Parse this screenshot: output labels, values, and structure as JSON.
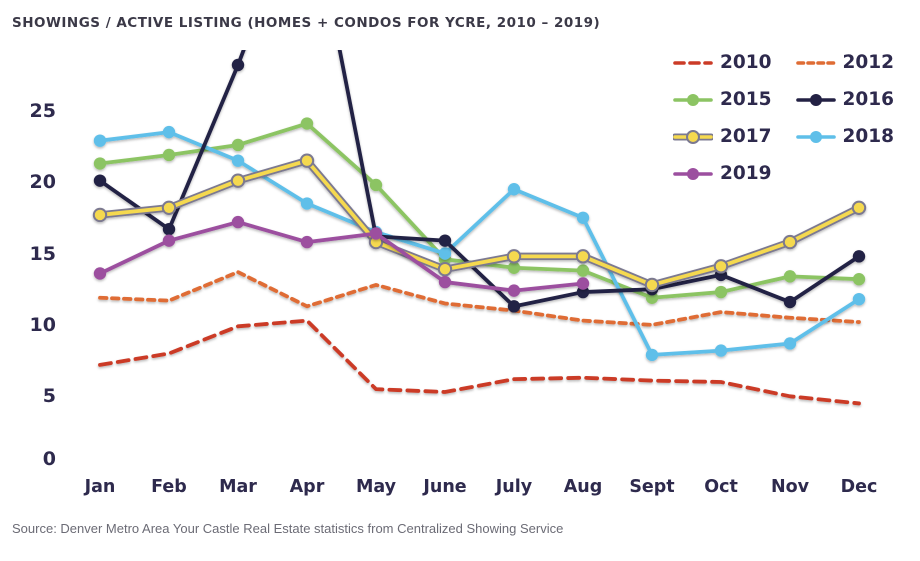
{
  "source": "Source: Denver Metro Area Your Castle Real Estate statistics from Centralized Showing Service",
  "chart_data": {
    "type": "line",
    "title": "SHOWINGS / ACTIVE LISTING (HOMES + CONDOS FOR YCRE, 2010 – 2019)",
    "categories": [
      "Jan",
      "Feb",
      "Mar",
      "Apr",
      "May",
      "June",
      "July",
      "Aug",
      "Sept",
      "Oct",
      "Nov",
      "Dec"
    ],
    "y_ticks": [
      0,
      5,
      10,
      15,
      20,
      25
    ],
    "ylim": [
      0,
      29
    ],
    "grid": false,
    "axis_lines": false,
    "legend_position": "top-right",
    "text_color": "#2e2a4d",
    "series": [
      {
        "name": "2010",
        "color": "#cb3b27",
        "style": "dashed",
        "dash": "long",
        "marker": false,
        "values": [
          7.2,
          8.0,
          9.9,
          10.3,
          5.5,
          5.3,
          6.2,
          6.3,
          6.1,
          6.0,
          5.0,
          4.5
        ]
      },
      {
        "name": "2012",
        "color": "#df6c34",
        "style": "dashed",
        "dash": "short",
        "marker": false,
        "values": [
          11.9,
          11.7,
          13.7,
          11.3,
          12.8,
          11.5,
          11.0,
          10.3,
          10.0,
          10.9,
          10.5,
          10.2
        ]
      },
      {
        "name": "2015",
        "color": "#8cc463",
        "style": "solid",
        "marker": true,
        "values": [
          21.3,
          21.9,
          22.6,
          24.1,
          19.8,
          14.6,
          14.0,
          13.8,
          11.9,
          12.3,
          13.4,
          13.2
        ]
      },
      {
        "name": "2016",
        "color": "#232144",
        "style": "solid",
        "marker": true,
        "values": [
          20.1,
          16.7,
          28.2,
          41,
          16.2,
          15.9,
          11.3,
          12.3,
          12.5,
          13.5,
          11.6,
          14.8
        ]
      },
      {
        "name": "2017",
        "color": "#f5d94f",
        "outline": "#7b7990",
        "style": "solid",
        "marker": true,
        "values": [
          17.7,
          18.2,
          20.1,
          21.5,
          15.8,
          13.9,
          14.8,
          14.8,
          12.8,
          14.1,
          15.8,
          18.2
        ]
      },
      {
        "name": "2018",
        "color": "#5fbfe9",
        "style": "solid",
        "marker": true,
        "values": [
          22.9,
          23.5,
          21.5,
          18.5,
          16.5,
          15.0,
          19.5,
          17.5,
          7.9,
          8.2,
          8.7,
          11.8
        ]
      },
      {
        "name": "2019",
        "color": "#9c4f9f",
        "style": "solid",
        "marker": true,
        "values": [
          13.6,
          15.9,
          17.2,
          15.8,
          16.4,
          13.0,
          12.4,
          12.9,
          null,
          null,
          null,
          null
        ]
      }
    ],
    "legend_order": [
      "2010",
      "2012",
      "2015",
      "2016",
      "2017",
      "2018",
      "2019"
    ],
    "draw_order": [
      "2010",
      "2012",
      "2015",
      "2018",
      "2016",
      "2017",
      "2019"
    ]
  }
}
